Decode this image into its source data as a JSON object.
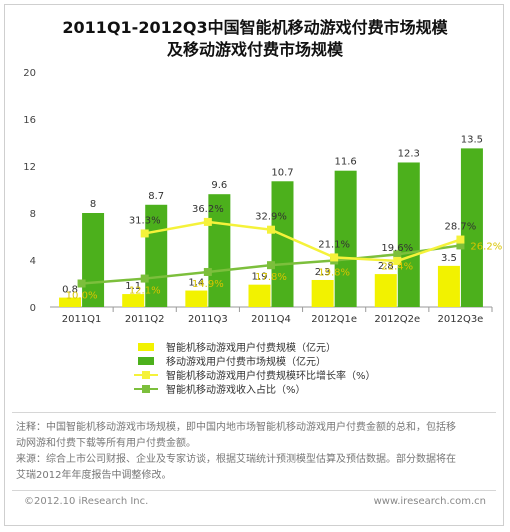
{
  "chart_data": {
    "type": "bar",
    "title_line1": "2011Q1-2012Q3中国智能机移动游戏付费市场规模",
    "title_line2": "及移动游戏付费市场规模",
    "categories": [
      "2011Q1",
      "2011Q2",
      "2011Q3",
      "2011Q4",
      "2012Q1e",
      "2012Q2e",
      "2012Q3e"
    ],
    "ylim": [
      0,
      20
    ],
    "yticks": [
      0,
      4,
      8,
      12,
      16,
      20
    ],
    "series": [
      {
        "name": "智能机移动游戏用户付费规模（亿元）",
        "kind": "bar",
        "color": "#f2f200",
        "values": [
          0.8,
          1.1,
          1.4,
          1.9,
          2.3,
          2.8,
          3.5
        ],
        "labels": [
          "0.8",
          "1.1",
          "1.4",
          "1.9",
          "2.3",
          "2.8",
          "3.5"
        ]
      },
      {
        "name": "移动游戏用户付费市场规模（亿元）",
        "kind": "bar",
        "color": "#4cb01c",
        "values": [
          8,
          8.7,
          9.6,
          10.7,
          11.6,
          12.3,
          13.5
        ],
        "labels": [
          "8",
          "8.7",
          "9.6",
          "10.7",
          "11.6",
          "12.3",
          "13.5"
        ]
      },
      {
        "name": "智能机移动游戏用户付费规模环比增长率（%）",
        "kind": "line",
        "color": "#f5f23a",
        "percent": [
          null,
          31.3,
          36.2,
          32.9,
          21.1,
          19.6,
          28.7
        ],
        "labels": [
          "",
          "31.3%",
          "36.2%",
          "32.9%",
          "21.1%",
          "19.6%",
          "28.7%"
        ]
      },
      {
        "name": "智能机移动游戏收入占比（%）",
        "kind": "line",
        "color": "#7cbf3c",
        "percent": [
          10.0,
          12.1,
          14.9,
          17.8,
          19.8,
          22.4,
          26.2
        ],
        "labels": [
          "10.0%",
          "12.1%",
          "14.9%",
          "17.8%",
          "19.8%",
          "22.4%",
          "26.2%"
        ]
      }
    ],
    "grid": false,
    "legend_position": "bottom"
  },
  "notes": {
    "line1": "注释：中国智能机移动游戏市场规模，即中国内地市场智能机移动游戏用户付费金额的总和，包括移",
    "line2": "动网游和付费下载等所有用户付费金额。",
    "line3": "来源：综合上市公司财报、企业及专家访谈，根据艾瑞统计预测模型估算及预估数据。部分数据将在",
    "line4": "艾瑞2012年年度报告中调整修改。"
  },
  "footer": {
    "copyright": "©2012.10 iResearch Inc.",
    "website": "www.iresearch.com.cn"
  }
}
